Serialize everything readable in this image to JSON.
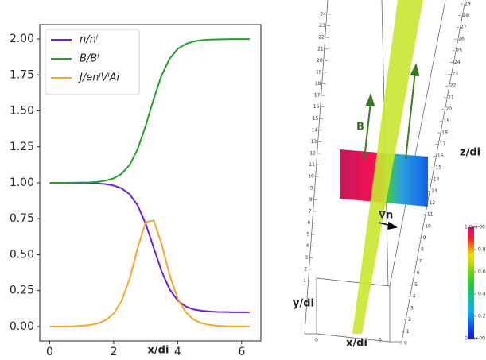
{
  "chart_data": {
    "type": "line",
    "xlabel": "x/di",
    "x": [
      0,
      0.25,
      0.5,
      0.75,
      1,
      1.25,
      1.5,
      1.75,
      2,
      2.25,
      2.5,
      2.75,
      3,
      3.25,
      3.5,
      3.75,
      4,
      4.25,
      4.5,
      4.75,
      5,
      5.25,
      5.5,
      5.75,
      6,
      6.25
    ],
    "series": [
      {
        "name": "n/nˡ",
        "color": "#6a1fe0",
        "values": [
          1.0,
          1.0,
          1.0,
          0.999,
          0.999,
          0.998,
          0.996,
          0.991,
          0.981,
          0.961,
          0.92,
          0.842,
          0.715,
          0.548,
          0.383,
          0.258,
          0.181,
          0.14,
          0.119,
          0.11,
          0.105,
          0.102,
          0.101,
          0.1,
          0.1,
          0.1
        ]
      },
      {
        "name": "B/Bˡ",
        "color": "#22a02a",
        "values": [
          1.0,
          1.0,
          1.0,
          1.001,
          1.002,
          1.003,
          1.007,
          1.015,
          1.031,
          1.063,
          1.125,
          1.235,
          1.396,
          1.583,
          1.748,
          1.864,
          1.931,
          1.966,
          1.984,
          1.992,
          1.996,
          1.998,
          1.999,
          2.0,
          2.0,
          2.0
        ]
      },
      {
        "name": "J/enˡVˡAi",
        "color": "#f8a630",
        "values": [
          0.0,
          0.0,
          0.001,
          0.002,
          0.005,
          0.01,
          0.021,
          0.044,
          0.09,
          0.18,
          0.333,
          0.546,
          0.727,
          0.739,
          0.572,
          0.357,
          0.195,
          0.099,
          0.048,
          0.023,
          0.011,
          0.005,
          0.002,
          0.001,
          0.001,
          0.0
        ]
      }
    ],
    "xlim": [
      -0.31,
      6.6
    ],
    "xticks": [
      0,
      2,
      4,
      6
    ],
    "ylim": [
      -0.1,
      2.1
    ],
    "yticks": [
      {
        "value": 0,
        "label": "0.00"
      },
      {
        "value": 0.25,
        "label": "0.25"
      },
      {
        "value": 0.5,
        "label": "0.50"
      },
      {
        "value": 0.75,
        "label": "0.75"
      },
      {
        "value": 1,
        "label": "1.00"
      },
      {
        "value": 1.25,
        "label": "1.25"
      },
      {
        "value": 1.5,
        "label": "1.50"
      },
      {
        "value": 1.75,
        "label": "1.75"
      },
      {
        "value": 2,
        "label": "2.00"
      }
    ],
    "legend": "upper left"
  },
  "figure_3d": {
    "field_label": "B",
    "gradient_label": "∇n",
    "zlabel": "z/di",
    "ylabel": "y/di",
    "xlabel": "x/di",
    "left_ticks": [
      1,
      2,
      3,
      4,
      5,
      6,
      7,
      8,
      9,
      10,
      11,
      12,
      13,
      14,
      15,
      16,
      17,
      18,
      19,
      20,
      21,
      22,
      23,
      24
    ],
    "right_ticks": [
      0,
      1,
      2,
      3,
      4,
      5,
      6,
      7,
      8,
      9,
      10,
      11,
      12,
      13,
      14,
      15,
      16,
      17,
      18,
      19,
      20,
      21,
      22,
      23,
      24,
      25,
      26,
      27,
      28,
      29
    ],
    "x_ticks": [
      0,
      5
    ],
    "colorbar": {
      "lim": [
        0,
        1
      ],
      "ticks": [
        {
          "value": 1,
          "label": "1.0e+00"
        },
        0.8,
        0.6,
        0.4,
        0.2,
        {
          "value": 0,
          "label": "0.0e+00"
        }
      ]
    }
  }
}
